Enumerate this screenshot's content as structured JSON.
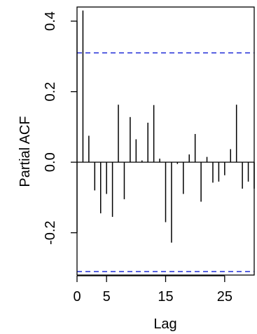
{
  "chart_data": {
    "type": "bar",
    "title": "",
    "xlabel": "Lag",
    "ylabel": "Partial ACF",
    "xlim": [
      0,
      30
    ],
    "ylim": [
      -0.32,
      0.44
    ],
    "x_ticks": [
      0,
      5,
      15,
      25
    ],
    "y_ticks": [
      0.4,
      0.2,
      0.0,
      -0.2
    ],
    "y_tick_labels": [
      "0.4",
      "0.2",
      "0.0",
      "-0.2"
    ],
    "confidence_bounds": [
      0.31,
      -0.31
    ],
    "grid": false,
    "series": [
      {
        "x": [
          1,
          2,
          3,
          4,
          5,
          6,
          7,
          8,
          9,
          10,
          11,
          12,
          13,
          14,
          15,
          16,
          17,
          18,
          19,
          20,
          21,
          22,
          23,
          24,
          25,
          26,
          27,
          28,
          29,
          30
        ],
        "values": [
          0.43,
          0.075,
          -0.08,
          -0.145,
          -0.09,
          -0.155,
          0.163,
          -0.105,
          0.128,
          0.065,
          0.005,
          0.112,
          0.162,
          0.01,
          -0.17,
          -0.228,
          -0.005,
          -0.09,
          0.022,
          0.08,
          -0.112,
          0.015,
          -0.058,
          -0.055,
          -0.037,
          0.037,
          0.163,
          -0.075,
          -0.055,
          -0.075
        ]
      }
    ],
    "colors": {
      "bars": "#000000",
      "confidence": "#1f2bd6",
      "axes": "#000000"
    }
  }
}
